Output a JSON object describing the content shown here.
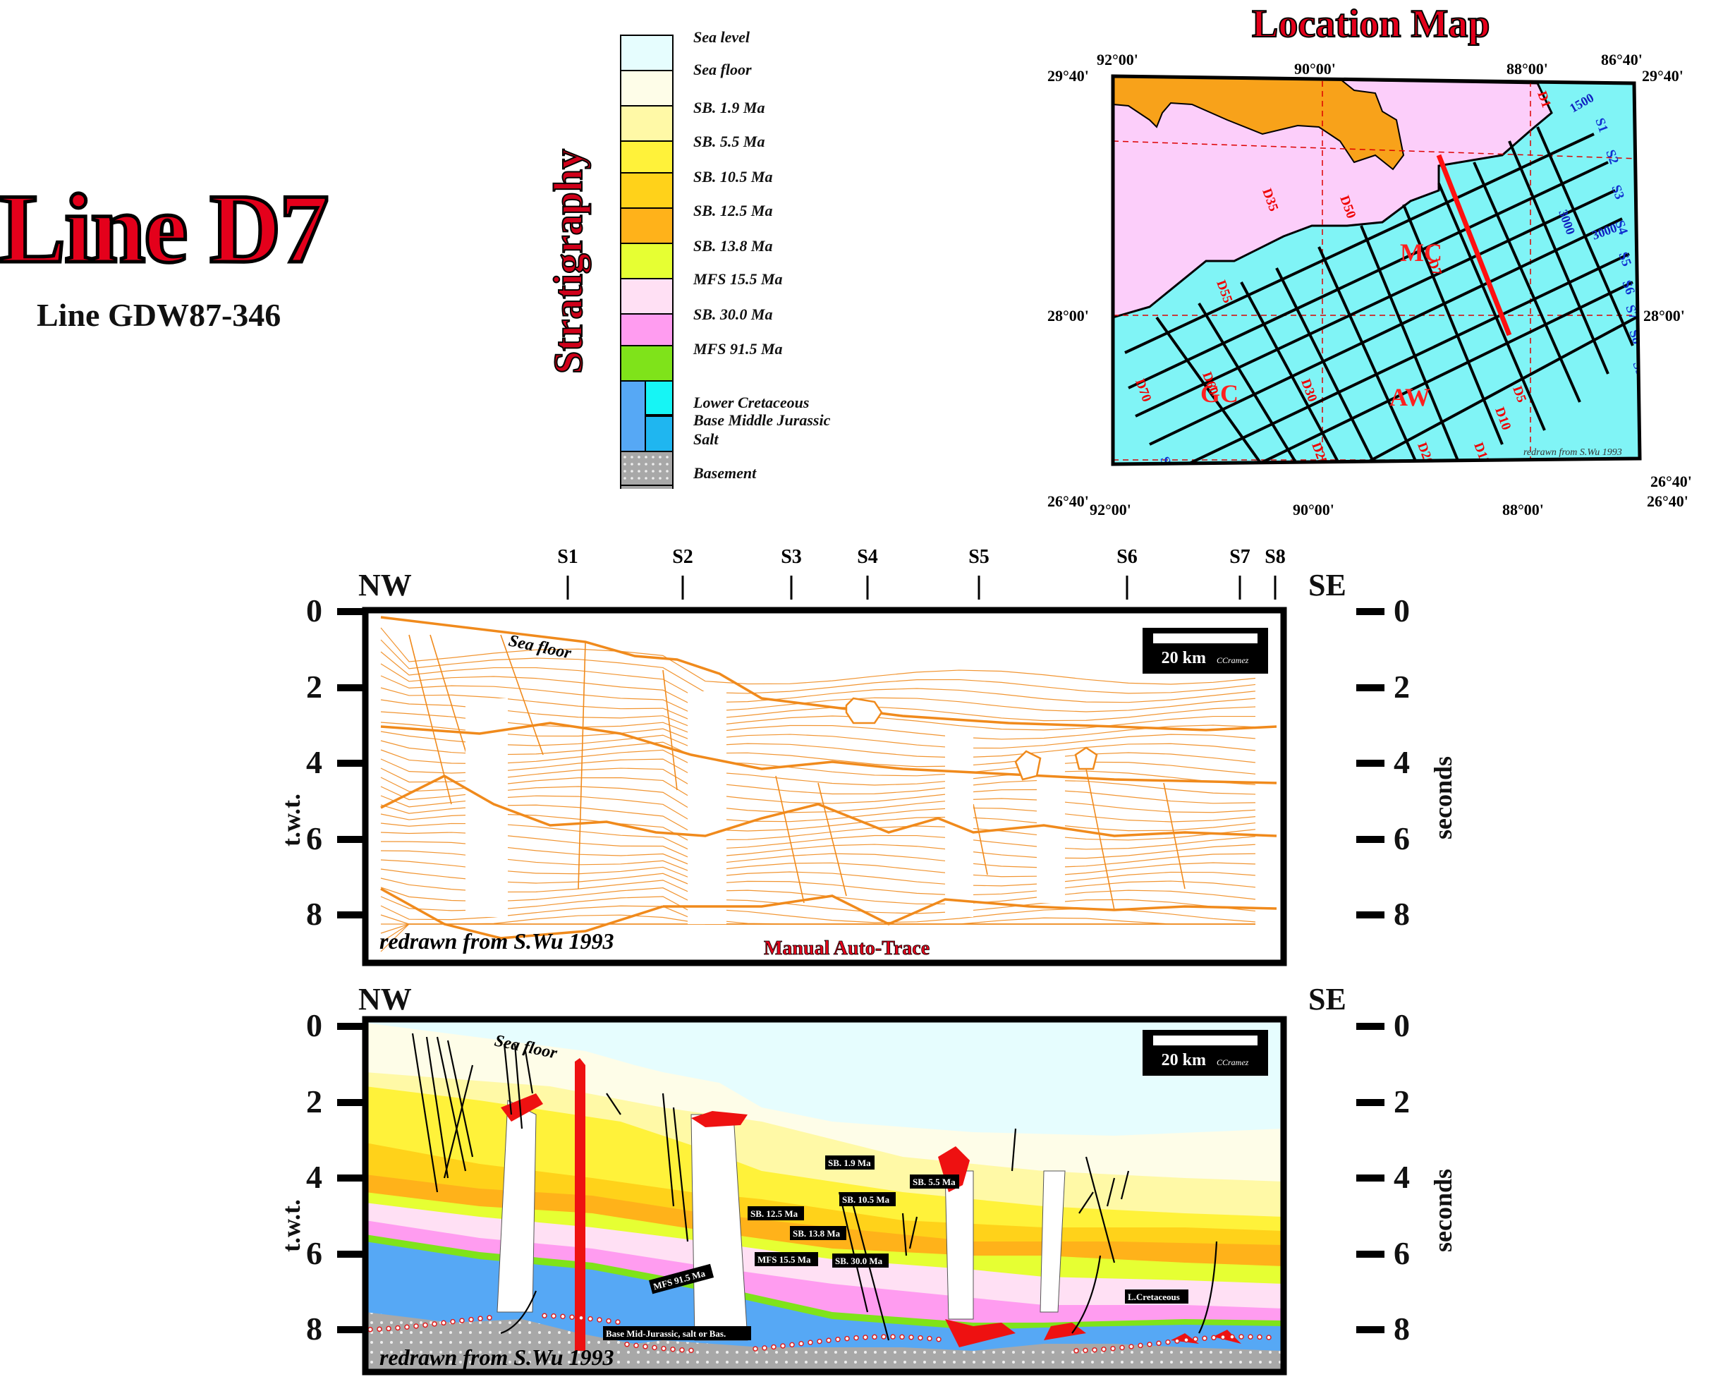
{
  "header": {
    "title": "Line D7",
    "subtitle": "Line GDW87-346"
  },
  "stratigraphy": {
    "label": "Stratigraphy",
    "items": [
      {
        "label": "Sea level",
        "color": "#e6fdfe"
      },
      {
        "label": "Sea floor",
        "color": "#fefde8"
      },
      {
        "label": "SB. 1.9 Ma",
        "color": "#fff9a6"
      },
      {
        "label": "SB. 5.5 Ma",
        "color": "#fff23a"
      },
      {
        "label": "SB. 10.5 Ma",
        "color": "#ffd21a"
      },
      {
        "label": "SB. 12.5 Ma",
        "color": "#ffb21a"
      },
      {
        "label": "SB. 13.8 Ma",
        "color": "#e6ff33"
      },
      {
        "label": "MFS 15.5 Ma",
        "color": "#ffe0f4"
      },
      {
        "label": "SB. 30.0 Ma",
        "color": "#ff9cf0"
      },
      {
        "label": "MFS 91.5 Ma",
        "color": "#7fe31a"
      },
      {
        "label": "Lower Cretaceous",
        "color": "#56a8f5"
      },
      {
        "label": "Base Middle Jurassic",
        "color": "#1fb6f0"
      },
      {
        "label": "Salt",
        "color": "#ee1111"
      },
      {
        "label": "Basement",
        "color": "#a8a8a8"
      }
    ]
  },
  "location_map": {
    "title": "Location Map",
    "coords": {
      "top_left": "29°40'",
      "top_right": "29°40'",
      "mid_left": "28°00'",
      "mid_right": "28°00'",
      "bottom_left": "26°40'",
      "bottom_right": "26°40'",
      "bottom_right_outer": "26°40'",
      "lon_92": "92°00'",
      "lon_90": "90°00'",
      "lon_88": "88°00'",
      "lon_86": "86°40'",
      "lon_92_b": "92°00'",
      "lon_90_b": "90°00'",
      "lon_88_b": "88°00'"
    },
    "areas": [
      "MC",
      "GC",
      "AW"
    ],
    "contours": [
      "1500",
      "3000",
      "3000"
    ],
    "d_lines": [
      "D1",
      "D5",
      "D10",
      "D15",
      "D20",
      "D25",
      "D30",
      "D35",
      "D50",
      "D55",
      "D60",
      "D65",
      "D70",
      "D7"
    ],
    "s_lines": [
      "S1",
      "S2",
      "S3",
      "S4",
      "S5",
      "S6",
      "S7",
      "S8",
      "S9"
    ],
    "credit": "redrawn from S.Wu 1993",
    "colors": {
      "land": "#fccefa",
      "delta": "#f8a21a",
      "sea": "#80f4f6"
    }
  },
  "section_top": {
    "left_dir": "NW",
    "right_dir": "SE",
    "shotpoints": [
      "S1",
      "S2",
      "S3",
      "S4",
      "S5",
      "S6",
      "S7",
      "S8"
    ],
    "y_ticks": [
      "0",
      "2",
      "4",
      "6",
      "8"
    ],
    "y_label_left": "t.w.t.",
    "y_label_right": "seconds",
    "scale_label": "20 km",
    "scale_credit": "CCramez",
    "sea_floor": "Sea floor",
    "credit": "redrawn from S.Wu 1993",
    "method": "Manual Auto-Trace",
    "trace_color": "#f08a1c"
  },
  "section_bottom": {
    "left_dir": "NW",
    "right_dir": "SE",
    "y_ticks": [
      "0",
      "2",
      "4",
      "6",
      "8"
    ],
    "y_label_left": "t.w.t.",
    "y_label_right": "seconds",
    "scale_label": "20 km",
    "scale_credit": "CCramez",
    "sea_floor": "Sea floor",
    "credit": "redrawn from S.Wu 1993",
    "horizon_labels": [
      "SB. 1.9 Ma",
      "SB. 5.5 Ma",
      "SB. 10.5 Ma",
      "SB. 12.5 Ma",
      "SB. 13.8 Ma",
      "MFS 15.5 Ma",
      "SB. 30.0 Ma",
      "MFS 91.5 Ma",
      "Base Mid-Jurassic, salt or Bas.",
      "L.Cretaceous"
    ]
  }
}
